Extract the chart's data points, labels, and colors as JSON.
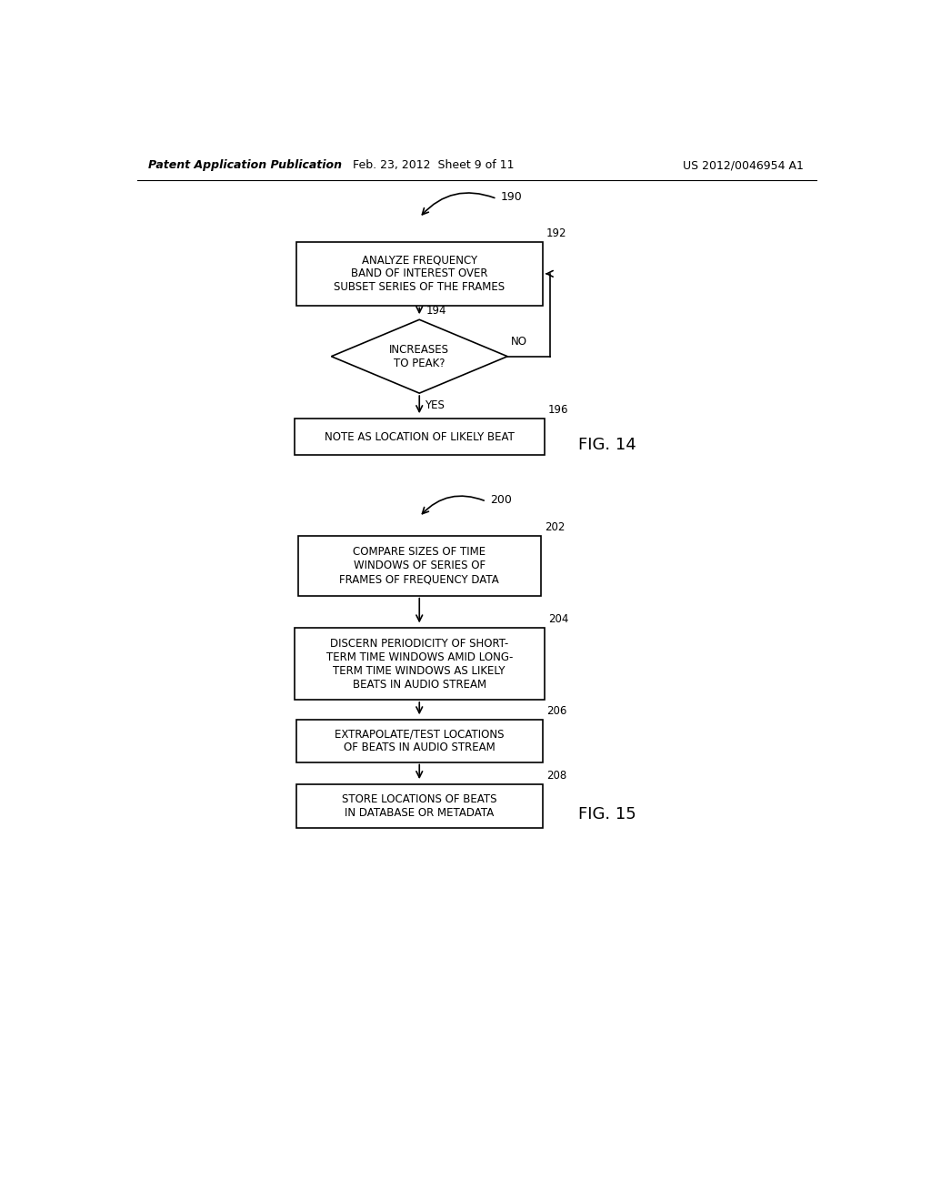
{
  "bg_color": "#ffffff",
  "header_left": "Patent Application Publication",
  "header_mid": "Feb. 23, 2012  Sheet 9 of 11",
  "header_right": "US 2012/0046954 A1",
  "fig14_label": "190",
  "fig14_box192_label": "192",
  "fig14_box192_text": "ANALYZE FREQUENCY\nBAND OF INTEREST OVER\nSUBSET SERIES OF THE FRAMES",
  "fig14_diamond194_label": "194",
  "fig14_diamond194_text": "INCREASES\nTO PEAK?",
  "fig14_no_label": "NO",
  "fig14_yes_label": "YES",
  "fig14_box196_label": "196",
  "fig14_box196_text": "NOTE AS LOCATION OF LIKELY BEAT",
  "fig14_caption": "FIG. 14",
  "fig15_label": "200",
  "fig15_box202_label": "202",
  "fig15_box202_text": "COMPARE SIZES OF TIME\nWINDOWS OF SERIES OF\nFRAMES OF FREQUENCY DATA",
  "fig15_box204_label": "204",
  "fig15_box204_text": "DISCERN PERIODICITY OF SHORT-\nTERM TIME WINDOWS AMID LONG-\nTERM TIME WINDOWS AS LIKELY\nBEATS IN AUDIO STREAM",
  "fig15_box206_label": "206",
  "fig15_box206_text": "EXTRAPOLATE/TEST LOCATIONS\nOF BEATS IN AUDIO STREAM",
  "fig15_box208_label": "208",
  "fig15_box208_text": "STORE LOCATIONS OF BEATS\nIN DATABASE OR METADATA",
  "fig15_caption": "FIG. 15",
  "box_color": "#ffffff",
  "box_edge_color": "#000000",
  "text_color": "#000000",
  "arrow_color": "#000000"
}
